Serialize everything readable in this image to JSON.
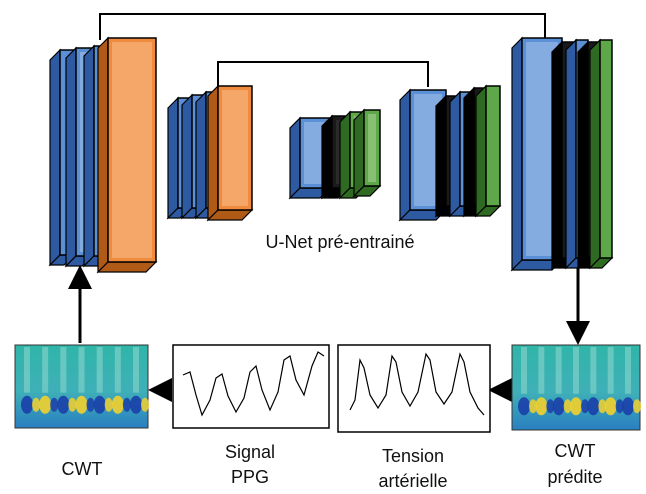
{
  "unet_label": "U-Net pré-entrainé",
  "cwt_input": "CWT",
  "signal": {
    "line1": "Signal",
    "line2": "PPG"
  },
  "tension": {
    "line1": "Tension",
    "line2": "artérielle"
  },
  "cwt_output": {
    "line1": "CWT",
    "line2": "prédite"
  }
}
